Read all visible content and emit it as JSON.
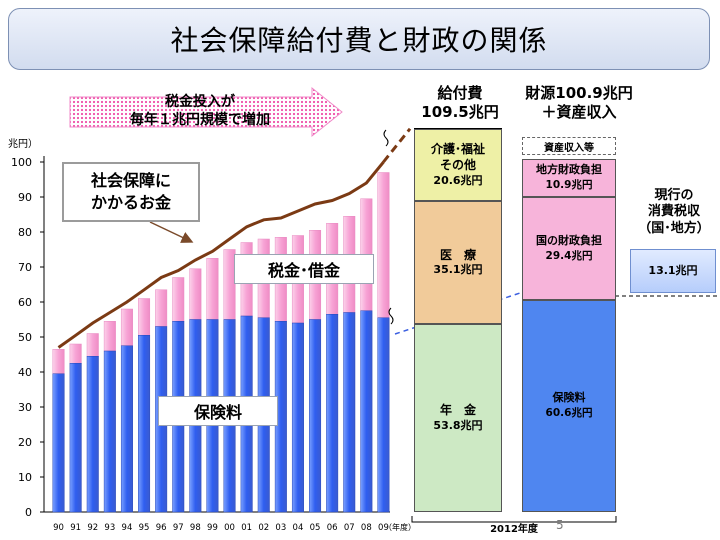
{
  "slide": {
    "title": "社会保障給付費と財政の関係",
    "arrow_text": [
      "税金投入が",
      "毎年１兆円規模で増加"
    ],
    "callout": [
      "社会保障に",
      "かかるお金"
    ],
    "taxdebt_label": "税金･借金",
    "premium_label": "保険料",
    "page_number": "5"
  },
  "benefit": {
    "title": [
      "給付費",
      "109.5兆円"
    ],
    "segments": [
      {
        "lines": [
          "年　金",
          "53.8兆円"
        ],
        "value": 53.8,
        "color": "#cde9c4"
      },
      {
        "lines": [
          "医　療",
          "35.1兆円"
        ],
        "value": 35.1,
        "color": "#f1cb9a"
      },
      {
        "lines": [
          "介護･福祉",
          "その他",
          "20.6兆円"
        ],
        "value": 20.6,
        "color": "#eef0a6"
      }
    ]
  },
  "source": {
    "title": [
      "財源100.9兆円",
      "＋資産収入"
    ],
    "segments": [
      {
        "lines": [
          "保険料",
          "60.6兆円"
        ],
        "value": 60.6,
        "color": "#4f86f0"
      },
      {
        "lines": [
          "国の財政負担",
          "29.4兆円"
        ],
        "value": 29.4,
        "color": "#f7b4da"
      },
      {
        "lines": [
          "地方財政負担",
          "10.9兆円"
        ],
        "value": 10.9,
        "color": "#f7b4da"
      }
    ],
    "asset_label": "資産収入等"
  },
  "consumption_tax": {
    "title": [
      "現行の",
      "消費税収",
      "（国･地方）"
    ],
    "value_label": "13.1兆円",
    "value": 13.1
  },
  "chart_data": {
    "type": "bar",
    "ylabel": "兆円）",
    "xunit": "（年度）",
    "xbottom_label": "2012年度",
    "ylim": [
      0,
      100
    ],
    "yticks": [
      0,
      10,
      20,
      30,
      40,
      50,
      60,
      70,
      80,
      90,
      100
    ],
    "categories": [
      "90",
      "91",
      "92",
      "93",
      "94",
      "95",
      "96",
      "97",
      "98",
      "99",
      "00",
      "01",
      "02",
      "03",
      "04",
      "05",
      "06",
      "07",
      "08",
      "09"
    ],
    "series": [
      {
        "name": "保険料",
        "values": [
          39.5,
          42.5,
          44.5,
          46,
          47.5,
          50.5,
          53,
          54.5,
          55,
          55,
          55,
          56,
          55.5,
          54.5,
          54,
          55,
          56.5,
          57,
          57.5,
          55.5
        ],
        "color": "#3d63e8"
      },
      {
        "name": "税金･借金",
        "values": [
          7,
          5.5,
          6.5,
          8.5,
          10.5,
          10.5,
          10.5,
          12.5,
          14.5,
          17.5,
          20,
          21,
          22.5,
          24,
          25,
          25.5,
          26,
          27.5,
          32,
          41.5
        ],
        "color": "#f59fd3"
      }
    ],
    "benefit_line": [
      47,
      50.5,
      54,
      57,
      60,
      63.5,
      67,
      69,
      72,
      74.5,
      78,
      81.5,
      83.5,
      84,
      86,
      88,
      89,
      91,
      94,
      100,
      109.5
    ]
  }
}
